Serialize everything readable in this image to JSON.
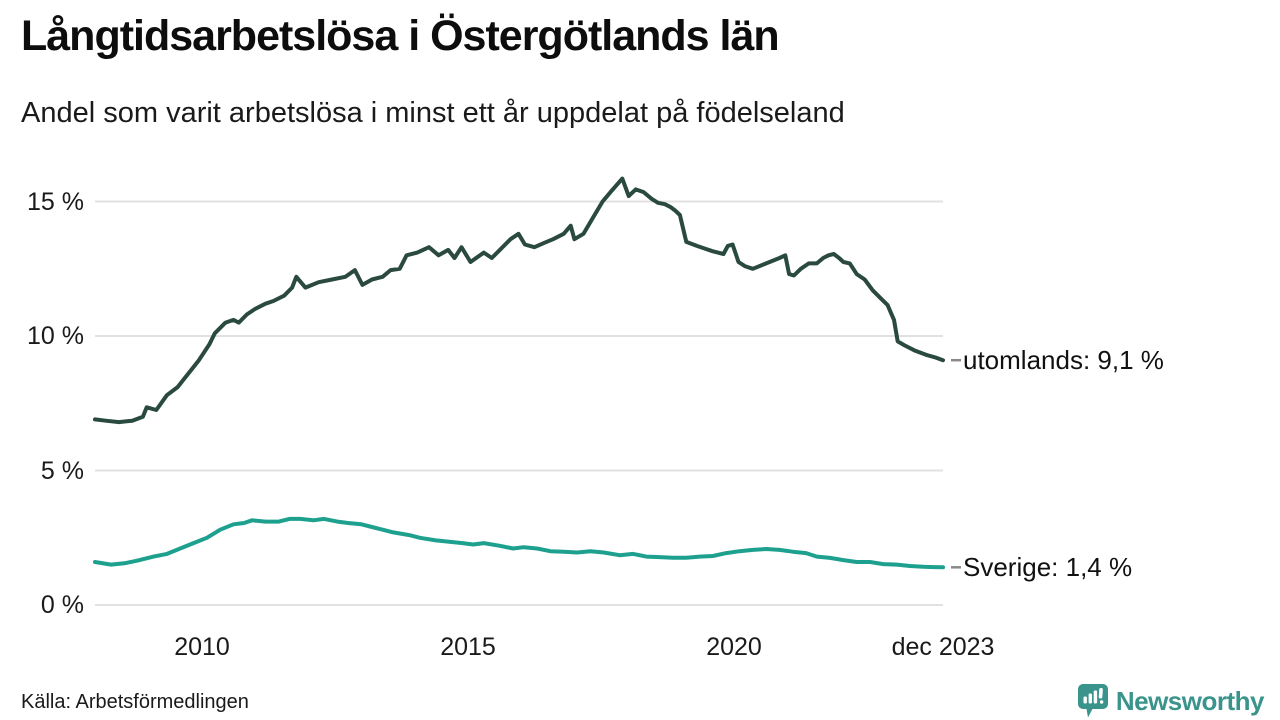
{
  "header": {
    "title": "Långtidsarbetslösa i Östergötlands län",
    "subtitle": "Andel som varit arbetslösa i minst ett år uppdelat på födelseland"
  },
  "chart_data": {
    "type": "line",
    "title": "Långtidsarbetslösa i Östergötlands län",
    "subtitle": "Andel som varit arbetslösa i minst ett år uppdelat på födelseland",
    "x_unit": "decimal_year",
    "xlim": [
      2008.0,
      2023.92
    ],
    "ylim": [
      0,
      16.5
    ],
    "grid": "horizontal",
    "legend_position": "end-of-line-labels",
    "yticks": [
      {
        "value": 0,
        "label": "0 %"
      },
      {
        "value": 5,
        "label": "5 %"
      },
      {
        "value": 10,
        "label": "10 %"
      },
      {
        "value": 15,
        "label": "15 %"
      }
    ],
    "xticks": [
      {
        "value": 2010,
        "label": "2010"
      },
      {
        "value": 2015,
        "label": "2015"
      },
      {
        "value": 2020,
        "label": "2020"
      },
      {
        "value": 2023.92,
        "label": "dec 2023"
      }
    ],
    "series": [
      {
        "id": "utomlands",
        "name": "utomlands",
        "color": "#2a4a3f",
        "end_label": "utomlands: 9,1 %",
        "end_value": "9,1 %",
        "points": [
          [
            2008.0,
            6.9
          ],
          [
            2008.2,
            6.85
          ],
          [
            2008.45,
            6.8
          ],
          [
            2008.7,
            6.85
          ],
          [
            2008.9,
            7.0
          ],
          [
            2008.97,
            7.35
          ],
          [
            2009.15,
            7.25
          ],
          [
            2009.35,
            7.8
          ],
          [
            2009.55,
            8.1
          ],
          [
            2009.75,
            8.6
          ],
          [
            2009.95,
            9.1
          ],
          [
            2010.15,
            9.7
          ],
          [
            2010.25,
            10.1
          ],
          [
            2010.45,
            10.5
          ],
          [
            2010.6,
            10.6
          ],
          [
            2010.7,
            10.5
          ],
          [
            2010.85,
            10.8
          ],
          [
            2011.0,
            11.0
          ],
          [
            2011.2,
            11.2
          ],
          [
            2011.35,
            11.3
          ],
          [
            2011.55,
            11.5
          ],
          [
            2011.7,
            11.8
          ],
          [
            2011.78,
            12.2
          ],
          [
            2011.95,
            11.8
          ],
          [
            2012.2,
            12.0
          ],
          [
            2012.45,
            12.1
          ],
          [
            2012.7,
            12.2
          ],
          [
            2012.88,
            12.45
          ],
          [
            2013.02,
            11.9
          ],
          [
            2013.2,
            12.1
          ],
          [
            2013.4,
            12.2
          ],
          [
            2013.55,
            12.45
          ],
          [
            2013.72,
            12.5
          ],
          [
            2013.85,
            13.0
          ],
          [
            2014.05,
            13.1
          ],
          [
            2014.27,
            13.3
          ],
          [
            2014.45,
            13.0
          ],
          [
            2014.63,
            13.2
          ],
          [
            2014.75,
            12.9
          ],
          [
            2014.88,
            13.3
          ],
          [
            2015.05,
            12.75
          ],
          [
            2015.3,
            13.1
          ],
          [
            2015.45,
            12.9
          ],
          [
            2015.8,
            13.6
          ],
          [
            2015.95,
            13.8
          ],
          [
            2016.07,
            13.4
          ],
          [
            2016.25,
            13.3
          ],
          [
            2016.42,
            13.45
          ],
          [
            2016.6,
            13.6
          ],
          [
            2016.8,
            13.8
          ],
          [
            2016.93,
            14.1
          ],
          [
            2017.0,
            13.6
          ],
          [
            2017.17,
            13.8
          ],
          [
            2017.35,
            14.4
          ],
          [
            2017.53,
            15.0
          ],
          [
            2017.7,
            15.4
          ],
          [
            2017.9,
            15.85
          ],
          [
            2018.02,
            15.2
          ],
          [
            2018.15,
            15.45
          ],
          [
            2018.3,
            15.35
          ],
          [
            2018.45,
            15.1
          ],
          [
            2018.57,
            14.95
          ],
          [
            2018.7,
            14.9
          ],
          [
            2018.8,
            14.8
          ],
          [
            2018.9,
            14.65
          ],
          [
            2018.98,
            14.5
          ],
          [
            2019.1,
            13.5
          ],
          [
            2019.3,
            13.35
          ],
          [
            2019.45,
            13.25
          ],
          [
            2019.6,
            13.15
          ],
          [
            2019.8,
            13.05
          ],
          [
            2019.88,
            13.35
          ],
          [
            2019.97,
            13.4
          ],
          [
            2020.08,
            12.75
          ],
          [
            2020.2,
            12.6
          ],
          [
            2020.35,
            12.5
          ],
          [
            2020.6,
            12.7
          ],
          [
            2020.85,
            12.9
          ],
          [
            2020.96,
            13.0
          ],
          [
            2021.03,
            12.3
          ],
          [
            2021.12,
            12.25
          ],
          [
            2021.25,
            12.5
          ],
          [
            2021.4,
            12.7
          ],
          [
            2021.55,
            12.7
          ],
          [
            2021.67,
            12.9
          ],
          [
            2021.77,
            13.0
          ],
          [
            2021.87,
            13.05
          ],
          [
            2021.97,
            12.9
          ],
          [
            2022.05,
            12.75
          ],
          [
            2022.17,
            12.7
          ],
          [
            2022.3,
            12.3
          ],
          [
            2022.45,
            12.1
          ],
          [
            2022.6,
            11.7
          ],
          [
            2022.75,
            11.4
          ],
          [
            2022.88,
            11.15
          ],
          [
            2023.0,
            10.6
          ],
          [
            2023.07,
            9.8
          ],
          [
            2023.2,
            9.65
          ],
          [
            2023.4,
            9.45
          ],
          [
            2023.6,
            9.3
          ],
          [
            2023.78,
            9.2
          ],
          [
            2023.92,
            9.1
          ]
        ]
      },
      {
        "id": "sverige",
        "name": "Sverige",
        "color": "#1ea08f",
        "end_label": "Sverige: 1,4 %",
        "end_value": "1,4 %",
        "points": [
          [
            2008.0,
            1.6
          ],
          [
            2008.3,
            1.5
          ],
          [
            2008.55,
            1.55
          ],
          [
            2008.8,
            1.65
          ],
          [
            2009.1,
            1.8
          ],
          [
            2009.35,
            1.9
          ],
          [
            2009.6,
            2.1
          ],
          [
            2009.85,
            2.3
          ],
          [
            2010.1,
            2.5
          ],
          [
            2010.35,
            2.8
          ],
          [
            2010.6,
            3.0
          ],
          [
            2010.8,
            3.05
          ],
          [
            2010.95,
            3.15
          ],
          [
            2011.2,
            3.1
          ],
          [
            2011.45,
            3.1
          ],
          [
            2011.65,
            3.2
          ],
          [
            2011.85,
            3.2
          ],
          [
            2012.1,
            3.15
          ],
          [
            2012.3,
            3.2
          ],
          [
            2012.55,
            3.1
          ],
          [
            2012.75,
            3.05
          ],
          [
            2013.0,
            3.0
          ],
          [
            2013.2,
            2.9
          ],
          [
            2013.4,
            2.8
          ],
          [
            2013.6,
            2.7
          ],
          [
            2013.9,
            2.6
          ],
          [
            2014.1,
            2.5
          ],
          [
            2014.4,
            2.4
          ],
          [
            2014.65,
            2.35
          ],
          [
            2014.9,
            2.3
          ],
          [
            2015.1,
            2.25
          ],
          [
            2015.3,
            2.3
          ],
          [
            2015.6,
            2.2
          ],
          [
            2015.85,
            2.1
          ],
          [
            2016.05,
            2.15
          ],
          [
            2016.3,
            2.1
          ],
          [
            2016.55,
            2.0
          ],
          [
            2016.8,
            1.98
          ],
          [
            2017.05,
            1.95
          ],
          [
            2017.3,
            2.0
          ],
          [
            2017.55,
            1.95
          ],
          [
            2017.85,
            1.85
          ],
          [
            2018.1,
            1.9
          ],
          [
            2018.35,
            1.8
          ],
          [
            2018.6,
            1.78
          ],
          [
            2018.85,
            1.76
          ],
          [
            2019.1,
            1.76
          ],
          [
            2019.35,
            1.8
          ],
          [
            2019.6,
            1.82
          ],
          [
            2019.85,
            1.93
          ],
          [
            2020.1,
            2.0
          ],
          [
            2020.35,
            2.05
          ],
          [
            2020.6,
            2.08
          ],
          [
            2020.85,
            2.05
          ],
          [
            2021.1,
            1.98
          ],
          [
            2021.35,
            1.93
          ],
          [
            2021.55,
            1.8
          ],
          [
            2021.8,
            1.75
          ],
          [
            2022.05,
            1.67
          ],
          [
            2022.3,
            1.6
          ],
          [
            2022.55,
            1.6
          ],
          [
            2022.8,
            1.52
          ],
          [
            2023.05,
            1.5
          ],
          [
            2023.3,
            1.45
          ],
          [
            2023.55,
            1.42
          ],
          [
            2023.75,
            1.41
          ],
          [
            2023.92,
            1.4
          ]
        ]
      }
    ]
  },
  "footer": {
    "source": "Källa: Arbetsförmedlingen",
    "brand": "Newsworthy"
  },
  "colors": {
    "gridline": "#e1e1e1",
    "end_dash": "#8a8a8a",
    "brand_teal": "#3b948b",
    "text": "#1a1a1a"
  }
}
